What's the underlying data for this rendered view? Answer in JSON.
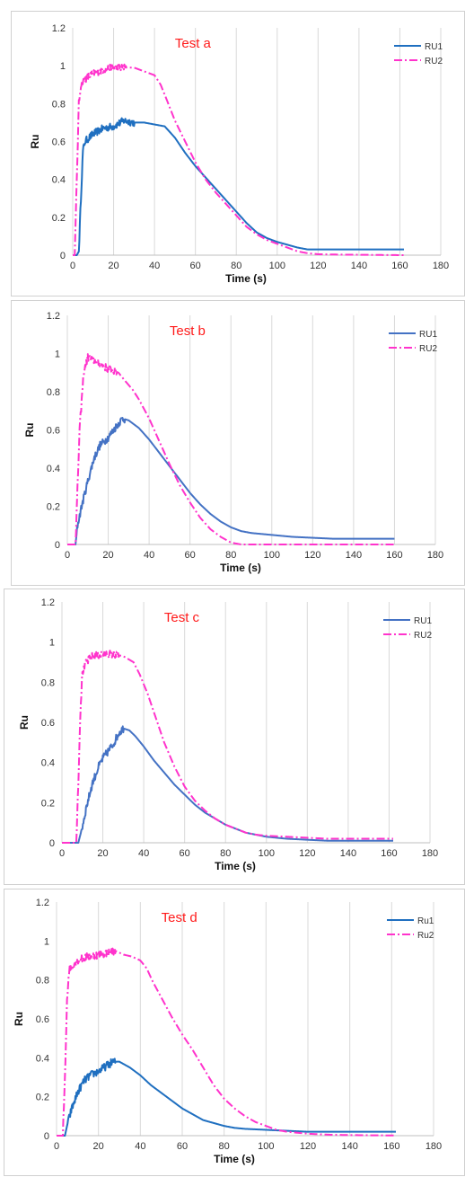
{
  "chart_data": [
    {
      "type": "line",
      "title": "Test a",
      "xlabel": "Time (s)",
      "ylabel": "Ru",
      "xlim": [
        0,
        180
      ],
      "ylim": [
        0,
        1.2
      ],
      "xticks": [
        0,
        20,
        40,
        60,
        80,
        100,
        120,
        140,
        160,
        180
      ],
      "yticks": [
        0,
        0.2,
        0.4,
        0.6,
        0.8,
        1,
        1.2
      ],
      "grid": "vertical",
      "legend": "top-right",
      "series": [
        {
          "name": "RU1",
          "color": "#1f6fc0",
          "dash": "solid",
          "noise_until": 30,
          "points": [
            [
              0,
              0
            ],
            [
              2,
              0
            ],
            [
              3,
              0.02
            ],
            [
              4,
              0.3
            ],
            [
              5,
              0.55
            ],
            [
              6,
              0.6
            ],
            [
              10,
              0.64
            ],
            [
              15,
              0.67
            ],
            [
              20,
              0.68
            ],
            [
              25,
              0.71
            ],
            [
              30,
              0.7
            ],
            [
              35,
              0.7
            ],
            [
              40,
              0.69
            ],
            [
              45,
              0.68
            ],
            [
              50,
              0.62
            ],
            [
              55,
              0.54
            ],
            [
              60,
              0.47
            ],
            [
              65,
              0.41
            ],
            [
              70,
              0.35
            ],
            [
              75,
              0.29
            ],
            [
              80,
              0.23
            ],
            [
              85,
              0.17
            ],
            [
              90,
              0.12
            ],
            [
              95,
              0.09
            ],
            [
              100,
              0.07
            ],
            [
              105,
              0.055
            ],
            [
              110,
              0.04
            ],
            [
              115,
              0.03
            ],
            [
              120,
              0.03
            ],
            [
              130,
              0.03
            ],
            [
              140,
              0.03
            ],
            [
              150,
              0.03
            ],
            [
              162,
              0.03
            ]
          ]
        },
        {
          "name": "RU2",
          "color": "#ff33cc",
          "dash": "dashdot",
          "noise_until": 26,
          "points": [
            [
              0,
              0
            ],
            [
              1,
              0
            ],
            [
              2,
              0.4
            ],
            [
              3,
              0.8
            ],
            [
              4,
              0.9
            ],
            [
              6,
              0.93
            ],
            [
              10,
              0.96
            ],
            [
              15,
              0.98
            ],
            [
              20,
              0.99
            ],
            [
              25,
              0.99
            ],
            [
              30,
              0.99
            ],
            [
              35,
              0.97
            ],
            [
              40,
              0.95
            ],
            [
              43,
              0.9
            ],
            [
              46,
              0.82
            ],
            [
              50,
              0.71
            ],
            [
              55,
              0.6
            ],
            [
              60,
              0.49
            ],
            [
              65,
              0.4
            ],
            [
              70,
              0.33
            ],
            [
              75,
              0.27
            ],
            [
              80,
              0.21
            ],
            [
              85,
              0.15
            ],
            [
              90,
              0.11
            ],
            [
              95,
              0.08
            ],
            [
              100,
              0.06
            ],
            [
              105,
              0.04
            ],
            [
              110,
              0.02
            ],
            [
              115,
              0.01
            ],
            [
              120,
              0.005
            ],
            [
              130,
              0.003
            ],
            [
              140,
              0.002
            ],
            [
              150,
              0.001
            ],
            [
              162,
              0
            ]
          ]
        }
      ]
    },
    {
      "type": "line",
      "title": "Test b",
      "xlabel": "Time (s)",
      "ylabel": "Ru",
      "xlim": [
        0,
        180
      ],
      "ylim": [
        0,
        1.2
      ],
      "xticks": [
        0,
        20,
        40,
        60,
        80,
        100,
        120,
        140,
        160,
        180
      ],
      "yticks": [
        0,
        0.2,
        0.4,
        0.6,
        0.8,
        1,
        1.2
      ],
      "grid": "vertical",
      "legend": "top-right",
      "series": [
        {
          "name": "RU1",
          "color": "#4472c4",
          "dash": "solid",
          "noise_until": 28,
          "points": [
            [
              0,
              0
            ],
            [
              4,
              0
            ],
            [
              5,
              0.1
            ],
            [
              7,
              0.2
            ],
            [
              10,
              0.33
            ],
            [
              13,
              0.45
            ],
            [
              16,
              0.52
            ],
            [
              20,
              0.56
            ],
            [
              24,
              0.62
            ],
            [
              27,
              0.66
            ],
            [
              30,
              0.65
            ],
            [
              35,
              0.61
            ],
            [
              40,
              0.55
            ],
            [
              45,
              0.48
            ],
            [
              50,
              0.41
            ],
            [
              55,
              0.34
            ],
            [
              60,
              0.27
            ],
            [
              65,
              0.21
            ],
            [
              70,
              0.16
            ],
            [
              75,
              0.12
            ],
            [
              80,
              0.09
            ],
            [
              85,
              0.07
            ],
            [
              90,
              0.06
            ],
            [
              100,
              0.05
            ],
            [
              110,
              0.04
            ],
            [
              120,
              0.035
            ],
            [
              130,
              0.03
            ],
            [
              140,
              0.03
            ],
            [
              150,
              0.03
            ],
            [
              160,
              0.03
            ]
          ]
        },
        {
          "name": "RU2",
          "color": "#ff33cc",
          "dash": "dashdot",
          "noise_until": 24,
          "points": [
            [
              0,
              0
            ],
            [
              4,
              0
            ],
            [
              5,
              0.3
            ],
            [
              6,
              0.6
            ],
            [
              8,
              0.9
            ],
            [
              10,
              0.98
            ],
            [
              12,
              0.97
            ],
            [
              15,
              0.95
            ],
            [
              20,
              0.92
            ],
            [
              25,
              0.9
            ],
            [
              28,
              0.86
            ],
            [
              32,
              0.81
            ],
            [
              35,
              0.76
            ],
            [
              40,
              0.66
            ],
            [
              45,
              0.54
            ],
            [
              50,
              0.42
            ],
            [
              55,
              0.31
            ],
            [
              60,
              0.22
            ],
            [
              65,
              0.14
            ],
            [
              70,
              0.08
            ],
            [
              75,
              0.04
            ],
            [
              80,
              0.01
            ],
            [
              85,
              0
            ],
            [
              100,
              0
            ],
            [
              120,
              0
            ],
            [
              140,
              0
            ],
            [
              160,
              0
            ]
          ]
        }
      ]
    },
    {
      "type": "line",
      "title": "Test c",
      "xlabel": "Time (s)",
      "ylabel": "Ru",
      "xlim": [
        0,
        180
      ],
      "ylim": [
        0,
        1.2
      ],
      "xticks": [
        0,
        20,
        40,
        60,
        80,
        100,
        120,
        140,
        160,
        180
      ],
      "yticks": [
        0,
        0.2,
        0.4,
        0.6,
        0.8,
        1,
        1.2
      ],
      "grid": "vertical",
      "legend": "top-right",
      "series": [
        {
          "name": "RU1",
          "color": "#4472c4",
          "dash": "solid",
          "noise_until": 30,
          "points": [
            [
              0,
              0
            ],
            [
              8,
              0
            ],
            [
              10,
              0.08
            ],
            [
              12,
              0.18
            ],
            [
              15,
              0.3
            ],
            [
              18,
              0.38
            ],
            [
              20,
              0.42
            ],
            [
              25,
              0.49
            ],
            [
              28,
              0.55
            ],
            [
              30,
              0.57
            ],
            [
              33,
              0.56
            ],
            [
              36,
              0.53
            ],
            [
              40,
              0.48
            ],
            [
              45,
              0.41
            ],
            [
              50,
              0.35
            ],
            [
              55,
              0.29
            ],
            [
              60,
              0.24
            ],
            [
              65,
              0.19
            ],
            [
              70,
              0.15
            ],
            [
              75,
              0.12
            ],
            [
              80,
              0.09
            ],
            [
              85,
              0.07
            ],
            [
              90,
              0.05
            ],
            [
              95,
              0.04
            ],
            [
              100,
              0.03
            ],
            [
              110,
              0.02
            ],
            [
              120,
              0.015
            ],
            [
              130,
              0.01
            ],
            [
              140,
              0.01
            ],
            [
              150,
              0.01
            ],
            [
              162,
              0.01
            ]
          ]
        },
        {
          "name": "RU2",
          "color": "#ff33cc",
          "dash": "dashdot",
          "noise_until": 28,
          "points": [
            [
              0,
              0
            ],
            [
              7,
              0
            ],
            [
              8,
              0.3
            ],
            [
              9,
              0.65
            ],
            [
              10,
              0.85
            ],
            [
              12,
              0.9
            ],
            [
              15,
              0.93
            ],
            [
              20,
              0.94
            ],
            [
              25,
              0.94
            ],
            [
              30,
              0.93
            ],
            [
              35,
              0.9
            ],
            [
              38,
              0.84
            ],
            [
              42,
              0.74
            ],
            [
              46,
              0.62
            ],
            [
              50,
              0.5
            ],
            [
              55,
              0.38
            ],
            [
              60,
              0.28
            ],
            [
              65,
              0.21
            ],
            [
              70,
              0.16
            ],
            [
              75,
              0.12
            ],
            [
              80,
              0.09
            ],
            [
              85,
              0.07
            ],
            [
              90,
              0.05
            ],
            [
              95,
              0.04
            ],
            [
              100,
              0.035
            ],
            [
              110,
              0.03
            ],
            [
              120,
              0.025
            ],
            [
              130,
              0.02
            ],
            [
              140,
              0.02
            ],
            [
              150,
              0.02
            ],
            [
              162,
              0.02
            ]
          ]
        }
      ]
    },
    {
      "type": "line",
      "title": "Test d",
      "xlabel": "Time (s)",
      "ylabel": "Ru",
      "xlim": [
        0,
        180
      ],
      "ylim": [
        0,
        1.2
      ],
      "xticks": [
        0,
        20,
        40,
        60,
        80,
        100,
        120,
        140,
        160,
        180
      ],
      "yticks": [
        0,
        0.2,
        0.4,
        0.6,
        0.8,
        1,
        1.2
      ],
      "grid": "vertical",
      "legend": "top-right",
      "series": [
        {
          "name": "Ru1",
          "color": "#1f6fc0",
          "dash": "solid",
          "noise_until": 28,
          "points": [
            [
              0,
              0
            ],
            [
              4,
              0
            ],
            [
              5,
              0.05
            ],
            [
              7,
              0.13
            ],
            [
              10,
              0.22
            ],
            [
              13,
              0.28
            ],
            [
              16,
              0.31
            ],
            [
              20,
              0.33
            ],
            [
              24,
              0.36
            ],
            [
              27,
              0.38
            ],
            [
              30,
              0.38
            ],
            [
              35,
              0.35
            ],
            [
              40,
              0.31
            ],
            [
              45,
              0.26
            ],
            [
              50,
              0.22
            ],
            [
              55,
              0.18
            ],
            [
              60,
              0.14
            ],
            [
              65,
              0.11
            ],
            [
              70,
              0.08
            ],
            [
              75,
              0.065
            ],
            [
              80,
              0.05
            ],
            [
              85,
              0.04
            ],
            [
              90,
              0.035
            ],
            [
              100,
              0.03
            ],
            [
              110,
              0.025
            ],
            [
              120,
              0.02
            ],
            [
              130,
              0.02
            ],
            [
              140,
              0.02
            ],
            [
              150,
              0.02
            ],
            [
              162,
              0.02
            ]
          ]
        },
        {
          "name": "Ru2",
          "color": "#ff33cc",
          "dash": "dashdot",
          "noise_until": 28,
          "points": [
            [
              0,
              0
            ],
            [
              3,
              0
            ],
            [
              4,
              0.3
            ],
            [
              5,
              0.7
            ],
            [
              6,
              0.85
            ],
            [
              8,
              0.88
            ],
            [
              10,
              0.9
            ],
            [
              15,
              0.92
            ],
            [
              20,
              0.93
            ],
            [
              25,
              0.94
            ],
            [
              28,
              0.95
            ],
            [
              32,
              0.93
            ],
            [
              36,
              0.92
            ],
            [
              40,
              0.9
            ],
            [
              43,
              0.86
            ],
            [
              46,
              0.79
            ],
            [
              50,
              0.71
            ],
            [
              55,
              0.61
            ],
            [
              60,
              0.52
            ],
            [
              65,
              0.44
            ],
            [
              70,
              0.35
            ],
            [
              75,
              0.26
            ],
            [
              80,
              0.19
            ],
            [
              85,
              0.14
            ],
            [
              90,
              0.1
            ],
            [
              95,
              0.07
            ],
            [
              100,
              0.05
            ],
            [
              105,
              0.03
            ],
            [
              110,
              0.02
            ],
            [
              120,
              0.01
            ],
            [
              130,
              0.005
            ],
            [
              140,
              0.003
            ],
            [
              150,
              0.002
            ],
            [
              162,
              0.001
            ]
          ]
        }
      ]
    }
  ]
}
